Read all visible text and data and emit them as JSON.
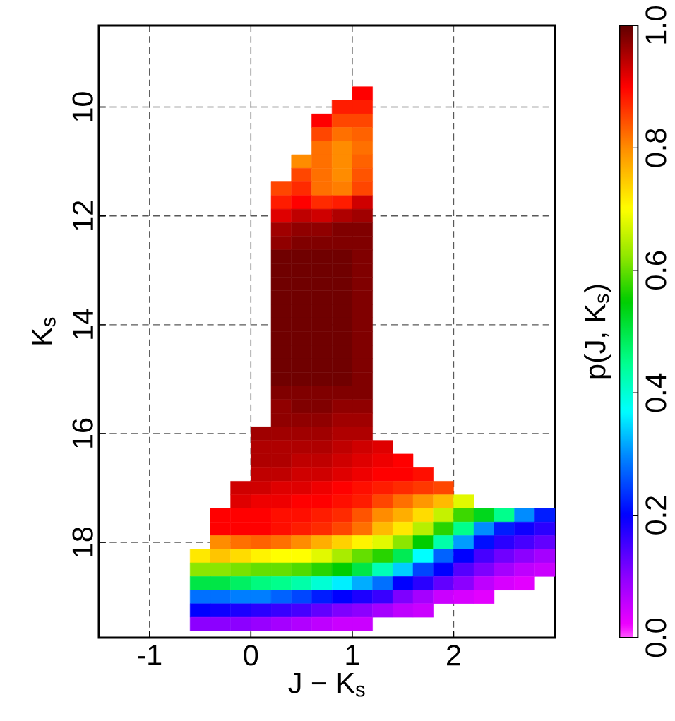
{
  "chart_data": {
    "type": "scatter",
    "marker": "square",
    "grid": true,
    "xlabel": "J − K$_{s}$",
    "ylabel": "K$_{s}$",
    "clabel": "p(J, K$_{s}$)",
    "xlim": [
      -1.5,
      3
    ],
    "ylim": [
      19.75,
      8.5
    ],
    "xticks": [
      -1,
      0,
      1,
      2
    ],
    "yticks": [
      10,
      12,
      14,
      16,
      18
    ],
    "clim": [
      0,
      1
    ],
    "cticks": [
      {
        "value": 0,
        "label": "0.0"
      },
      0.2,
      0.4,
      0.6,
      0.8,
      {
        "value": 1,
        "label": "1.0"
      }
    ],
    "x": [
      1.1,
      0.9,
      1.1,
      0.7,
      0.9,
      1.1,
      0.7,
      0.9,
      1.1,
      0.7,
      0.9,
      1.1,
      0.5,
      0.7,
      0.9,
      1.1,
      0.5,
      0.7,
      0.9,
      1.1,
      0.3,
      0.5,
      0.7,
      0.9,
      1.1,
      0.3,
      0.5,
      0.7,
      0.9,
      1.1,
      0.3,
      0.5,
      0.7,
      0.9,
      1.1,
      0.3,
      0.5,
      0.7,
      0.9,
      1.1,
      0.3,
      0.5,
      0.7,
      0.9,
      1.1,
      0.3,
      0.5,
      0.7,
      0.9,
      1.1,
      0.3,
      0.5,
      0.7,
      0.9,
      1.1,
      0.3,
      0.5,
      0.7,
      0.9,
      1.1,
      0.3,
      0.5,
      0.7,
      0.9,
      1.1,
      0.3,
      0.5,
      0.7,
      0.9,
      1.1,
      0.3,
      0.5,
      0.7,
      0.9,
      1.1,
      0.3,
      0.5,
      0.7,
      0.9,
      1.1,
      0.3,
      0.5,
      0.7,
      0.9,
      1.1,
      0.3,
      0.5,
      0.7,
      0.9,
      1.1,
      0.3,
      0.5,
      0.7,
      0.9,
      1.1,
      0.3,
      0.5,
      0.7,
      0.9,
      1.1,
      0.3,
      0.5,
      0.7,
      0.9,
      1.1,
      0.3,
      0.5,
      0.7,
      0.9,
      1.1,
      0.1,
      0.3,
      0.5,
      0.7,
      0.9,
      1.1,
      0.1,
      0.3,
      0.5,
      0.7,
      0.9,
      1.1,
      1.3,
      0.1,
      0.3,
      0.5,
      0.7,
      0.9,
      1.1,
      1.3,
      1.5,
      0.1,
      0.3,
      0.5,
      0.7,
      0.9,
      1.1,
      1.3,
      1.5,
      1.7,
      -0.1,
      0.1,
      0.3,
      0.5,
      0.7,
      0.9,
      1.1,
      1.3,
      1.5,
      1.7,
      1.9,
      -0.1,
      0.1,
      0.3,
      0.5,
      0.7,
      0.9,
      1.1,
      1.3,
      1.5,
      1.7,
      1.9,
      2.1,
      -0.3,
      -0.1,
      0.1,
      0.3,
      0.5,
      0.7,
      0.9,
      1.1,
      1.3,
      1.5,
      1.7,
      1.9,
      2.1,
      2.3,
      2.5,
      2.7,
      2.9,
      -0.3,
      -0.1,
      0.1,
      0.3,
      0.5,
      0.7,
      0.9,
      1.1,
      1.3,
      1.5,
      1.7,
      1.9,
      2.1,
      2.3,
      2.5,
      2.7,
      2.9,
      -0.3,
      -0.1,
      0.1,
      0.3,
      0.5,
      0.7,
      0.9,
      1.1,
      1.3,
      1.5,
      1.7,
      1.9,
      2.1,
      2.3,
      2.5,
      2.7,
      2.9,
      -0.5,
      -0.3,
      -0.1,
      0.1,
      0.3,
      0.5,
      0.7,
      0.9,
      1.1,
      1.3,
      1.5,
      1.7,
      1.9,
      2.1,
      2.3,
      2.5,
      2.7,
      2.9,
      -0.5,
      -0.3,
      -0.1,
      0.1,
      0.3,
      0.5,
      0.7,
      0.9,
      1.1,
      1.3,
      1.5,
      1.7,
      1.9,
      2.1,
      2.3,
      2.5,
      2.7,
      2.9,
      -0.5,
      -0.3,
      -0.1,
      0.1,
      0.3,
      0.5,
      0.7,
      0.9,
      1.1,
      1.3,
      1.5,
      1.7,
      1.9,
      2.1,
      2.3,
      2.5,
      2.7,
      -0.5,
      -0.3,
      -0.1,
      0.1,
      0.3,
      0.5,
      0.7,
      0.9,
      1.1,
      1.3,
      1.5,
      1.7,
      1.9,
      2.1,
      2.3,
      -0.5,
      -0.3,
      -0.1,
      0.1,
      0.3,
      0.5,
      0.7,
      0.9,
      1.1,
      1.3,
      1.5,
      1.7,
      -0.5,
      -0.3,
      -0.1,
      0.1,
      0.3,
      0.5,
      0.7,
      0.9,
      1.1
    ],
    "values": [
      9.75,
      10,
      10,
      10.25,
      10.25,
      10.25,
      10.5,
      10.5,
      10.5,
      10.75,
      10.75,
      10.75,
      11,
      11,
      11,
      11,
      11.25,
      11.25,
      11.25,
      11.25,
      11.5,
      11.5,
      11.5,
      11.5,
      11.5,
      11.75,
      11.75,
      11.75,
      11.75,
      11.75,
      12,
      12,
      12,
      12,
      12,
      12.25,
      12.25,
      12.25,
      12.25,
      12.25,
      12.5,
      12.5,
      12.5,
      12.5,
      12.5,
      12.75,
      12.75,
      12.75,
      12.75,
      12.75,
      13,
      13,
      13,
      13,
      13,
      13.25,
      13.25,
      13.25,
      13.25,
      13.25,
      13.5,
      13.5,
      13.5,
      13.5,
      13.5,
      13.75,
      13.75,
      13.75,
      13.75,
      13.75,
      14,
      14,
      14,
      14,
      14,
      14.25,
      14.25,
      14.25,
      14.25,
      14.25,
      14.5,
      14.5,
      14.5,
      14.5,
      14.5,
      14.75,
      14.75,
      14.75,
      14.75,
      14.75,
      15,
      15,
      15,
      15,
      15,
      15.25,
      15.25,
      15.25,
      15.25,
      15.25,
      15.5,
      15.5,
      15.5,
      15.5,
      15.5,
      15.75,
      15.75,
      15.75,
      15.75,
      15.75,
      16,
      16,
      16,
      16,
      16,
      16,
      16.25,
      16.25,
      16.25,
      16.25,
      16.25,
      16.25,
      16.25,
      16.5,
      16.5,
      16.5,
      16.5,
      16.5,
      16.5,
      16.5,
      16.5,
      16.75,
      16.75,
      16.75,
      16.75,
      16.75,
      16.75,
      16.75,
      16.75,
      16.75,
      17,
      17,
      17,
      17,
      17,
      17,
      17,
      17,
      17,
      17,
      17,
      17.25,
      17.25,
      17.25,
      17.25,
      17.25,
      17.25,
      17.25,
      17.25,
      17.25,
      17.25,
      17.25,
      17.25,
      17.5,
      17.5,
      17.5,
      17.5,
      17.5,
      17.5,
      17.5,
      17.5,
      17.5,
      17.5,
      17.5,
      17.5,
      17.5,
      17.5,
      17.5,
      17.5,
      17.5,
      17.75,
      17.75,
      17.75,
      17.75,
      17.75,
      17.75,
      17.75,
      17.75,
      17.75,
      17.75,
      17.75,
      17.75,
      17.75,
      17.75,
      17.75,
      17.75,
      17.75,
      18,
      18,
      18,
      18,
      18,
      18,
      18,
      18,
      18,
      18,
      18,
      18,
      18,
      18,
      18,
      18,
      18,
      18.25,
      18.25,
      18.25,
      18.25,
      18.25,
      18.25,
      18.25,
      18.25,
      18.25,
      18.25,
      18.25,
      18.25,
      18.25,
      18.25,
      18.25,
      18.25,
      18.25,
      18.25,
      18.5,
      18.5,
      18.5,
      18.5,
      18.5,
      18.5,
      18.5,
      18.5,
      18.5,
      18.5,
      18.5,
      18.5,
      18.5,
      18.5,
      18.5,
      18.5,
      18.5,
      18.5,
      18.75,
      18.75,
      18.75,
      18.75,
      18.75,
      18.75,
      18.75,
      18.75,
      18.75,
      18.75,
      18.75,
      18.75,
      18.75,
      18.75,
      18.75,
      18.75,
      18.75,
      19,
      19,
      19,
      19,
      19,
      19,
      19,
      19,
      19,
      19,
      19,
      19,
      19,
      19,
      19,
      19.25,
      19.25,
      19.25,
      19.25,
      19.25,
      19.25,
      19.25,
      19.25,
      19.25,
      19.25,
      19.25,
      19.25,
      19.5,
      19.5,
      19.5,
      19.5,
      19.5,
      19.5,
      19.5,
      19.5,
      19.5
    ],
    "cvalues": [
      0.9,
      0.88,
      0.88,
      0.9,
      0.85,
      0.85,
      0.85,
      0.82,
      0.83,
      0.82,
      0.8,
      0.82,
      0.8,
      0.82,
      0.8,
      0.83,
      0.85,
      0.82,
      0.8,
      0.84,
      0.85,
      0.87,
      0.82,
      0.81,
      0.85,
      0.88,
      0.9,
      0.87,
      0.88,
      0.93,
      0.92,
      0.94,
      0.93,
      0.95,
      0.96,
      0.96,
      0.97,
      0.97,
      0.98,
      0.98,
      0.97,
      0.98,
      0.98,
      0.98,
      0.98,
      0.99,
      0.99,
      0.99,
      0.99,
      0.98,
      0.99,
      0.99,
      0.99,
      0.99,
      0.98,
      0.99,
      0.99,
      0.99,
      0.99,
      0.98,
      0.99,
      0.99,
      0.99,
      0.99,
      0.98,
      0.99,
      0.99,
      0.99,
      0.99,
      0.98,
      0.99,
      0.99,
      0.99,
      0.99,
      0.98,
      0.99,
      0.99,
      0.99,
      0.99,
      0.98,
      0.99,
      0.99,
      0.99,
      0.99,
      0.98,
      0.99,
      0.99,
      0.99,
      0.99,
      0.98,
      0.99,
      0.99,
      0.99,
      0.99,
      0.98,
      0.98,
      0.98,
      0.98,
      0.98,
      0.98,
      0.97,
      0.98,
      0.98,
      0.97,
      0.97,
      0.97,
      0.97,
      0.97,
      0.96,
      0.96,
      0.96,
      0.96,
      0.96,
      0.96,
      0.95,
      0.95,
      0.95,
      0.95,
      0.95,
      0.95,
      0.94,
      0.93,
      0.92,
      0.95,
      0.95,
      0.94,
      0.94,
      0.93,
      0.92,
      0.91,
      0.9,
      0.94,
      0.94,
      0.93,
      0.93,
      0.92,
      0.91,
      0.9,
      0.9,
      0.89,
      0.93,
      0.93,
      0.92,
      0.92,
      0.91,
      0.9,
      0.89,
      0.88,
      0.87,
      0.86,
      0.85,
      0.92,
      0.91,
      0.91,
      0.9,
      0.9,
      0.89,
      0.88,
      0.85,
      0.82,
      0.79,
      0.76,
      0.68,
      0.9,
      0.9,
      0.9,
      0.89,
      0.89,
      0.88,
      0.87,
      0.84,
      0.8,
      0.77,
      0.73,
      0.66,
      0.58,
      0.53,
      0.45,
      0.3,
      0.22,
      0.9,
      0.9,
      0.9,
      0.89,
      0.88,
      0.87,
      0.85,
      0.82,
      0.76,
      0.72,
      0.65,
      0.57,
      0.45,
      0.3,
      0.22,
      0.19,
      0.17,
      0.8,
      0.82,
      0.83,
      0.82,
      0.8,
      0.77,
      0.74,
      0.71,
      0.68,
      0.62,
      0.55,
      0.43,
      0.31,
      0.21,
      0.17,
      0.15,
      0.13,
      0.72,
      0.75,
      0.73,
      0.71,
      0.7,
      0.7,
      0.68,
      0.64,
      0.6,
      0.57,
      0.49,
      0.37,
      0.27,
      0.2,
      0.15,
      0.12,
      0.1,
      0.08,
      0.62,
      0.62,
      0.61,
      0.6,
      0.6,
      0.59,
      0.57,
      0.55,
      0.5,
      0.42,
      0.34,
      0.25,
      0.2,
      0.14,
      0.11,
      0.08,
      0.06,
      0.05,
      0.5,
      0.5,
      0.48,
      0.46,
      0.45,
      0.43,
      0.4,
      0.36,
      0.32,
      0.28,
      0.2,
      0.17,
      0.13,
      0.1,
      0.06,
      0.04,
      0.03,
      0.28,
      0.28,
      0.29,
      0.29,
      0.27,
      0.25,
      0.22,
      0.2,
      0.18,
      0.16,
      0.11,
      0.08,
      0.05,
      0.04,
      0.03,
      0.2,
      0.19,
      0.18,
      0.17,
      0.16,
      0.15,
      0.13,
      0.11,
      0.1,
      0.08,
      0.06,
      0.05,
      0.1,
      0.1,
      0.1,
      0.09,
      0.08,
      0.07,
      0.06,
      0.05,
      0.05
    ]
  }
}
